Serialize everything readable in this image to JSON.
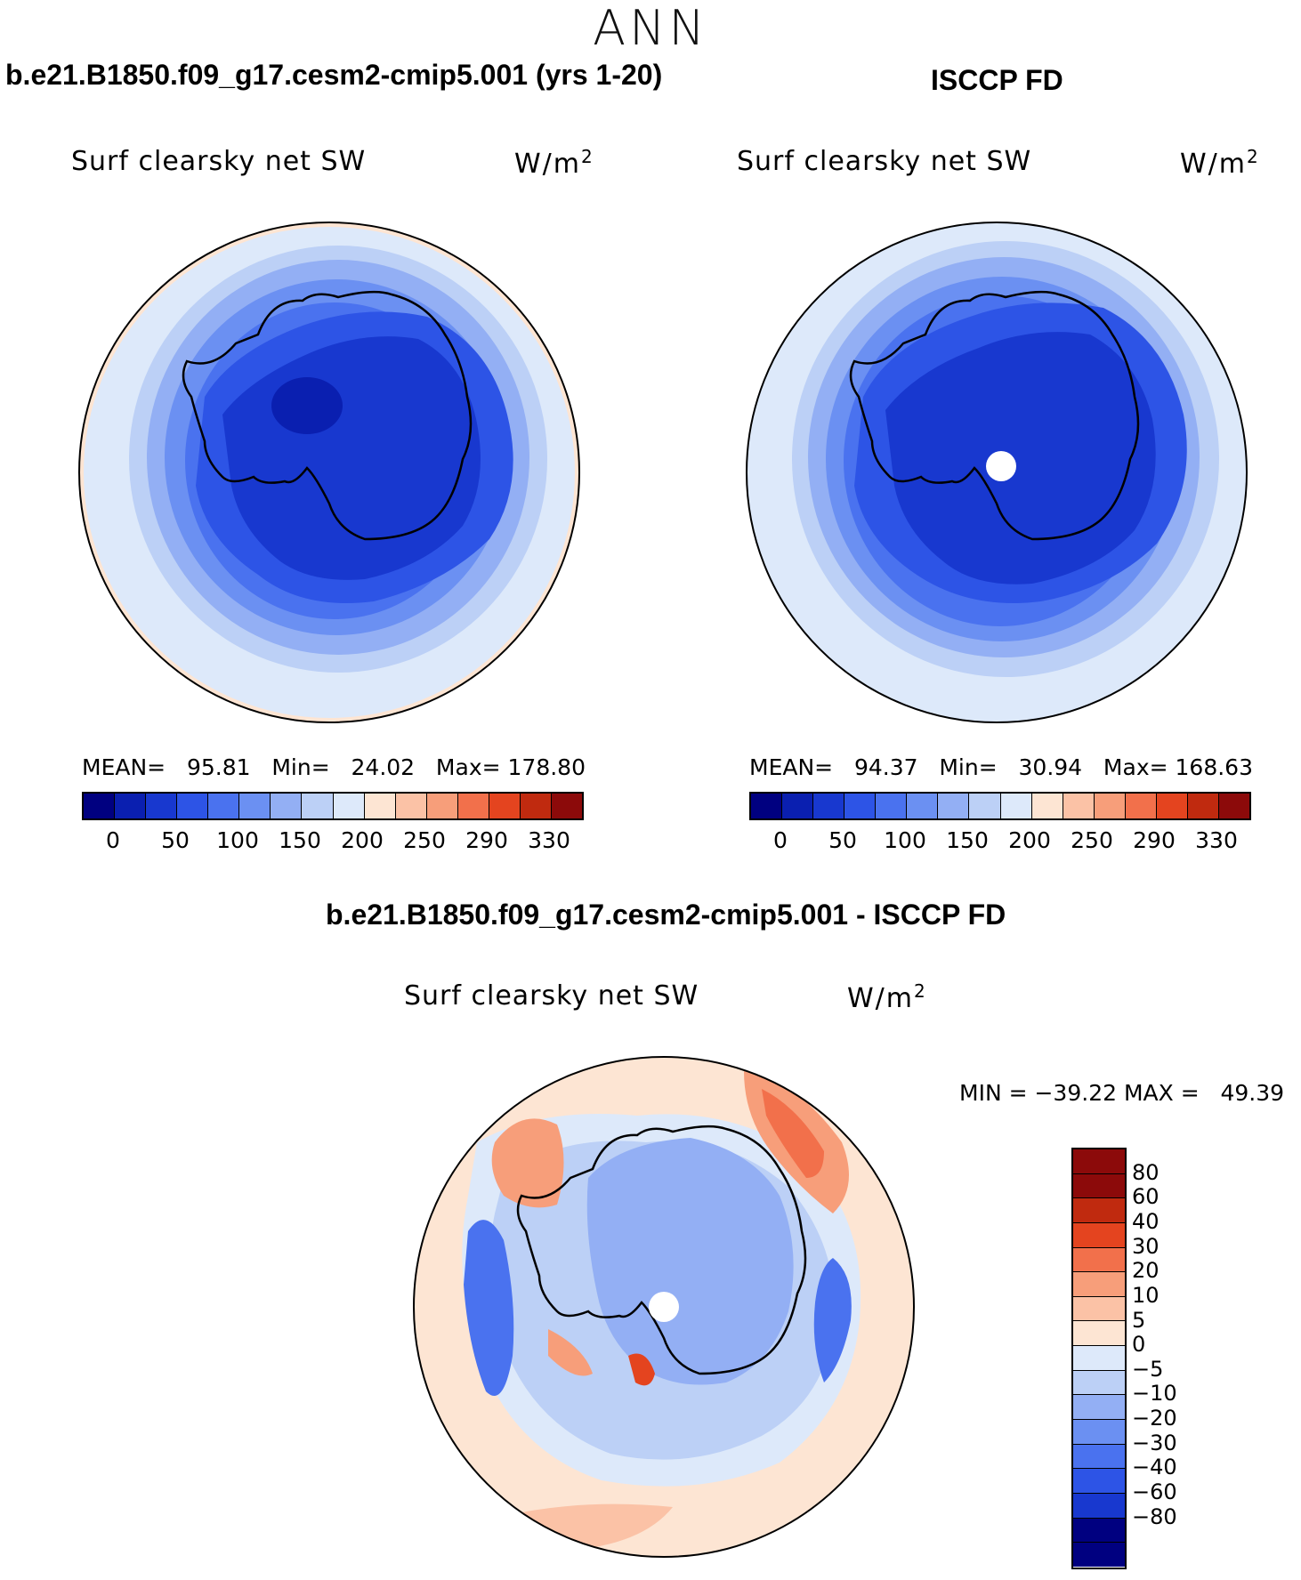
{
  "figure": {
    "title": "ANN",
    "variable": "Surf clearsky net SW",
    "units": "W/m",
    "units_sup": "2"
  },
  "panels": [
    {
      "id": "model",
      "title": "b.e21.B1850.f09_g17.cesm2-cmip5.001 (yrs 1-20)",
      "stats": "MEAN=   95.81   Min=   24.02   Max= 178.80"
    },
    {
      "id": "obs",
      "title": "ISCCP FD",
      "stats": "MEAN=   94.37   Min=   30.94   Max= 168.63"
    },
    {
      "id": "diff",
      "title": "b.e21.B1850.f09_g17.cesm2-cmip5.001 - ISCCP FD",
      "stats": "MIN = −39.22 MAX =   49.39"
    }
  ],
  "colorbar_abs": {
    "colors": [
      "#000080",
      "#0a1fb0",
      "#1838cf",
      "#2d54e6",
      "#4a72ef",
      "#6b90f2",
      "#93aff4",
      "#bcd0f6",
      "#dde9fa",
      "#fde5d3",
      "#fbc2a6",
      "#f79e7a",
      "#f2704b",
      "#e4441f",
      "#c02a0f",
      "#8c0a0a"
    ],
    "labels": [
      "0",
      "50",
      "100",
      "150",
      "200",
      "250",
      "290",
      "330"
    ]
  },
  "colorbar_diff": {
    "colors": [
      "#8c0a0a",
      "#c02a0f",
      "#e4441f",
      "#f2704b",
      "#f79e7a",
      "#fbc2a6",
      "#fde5d3",
      "#dde9fa",
      "#bcd0f6",
      "#93aff4",
      "#6b90f2",
      "#4a72ef",
      "#2d54e6",
      "#1838cf",
      "#000080"
    ],
    "labels": [
      "80",
      "60",
      "40",
      "30",
      "20",
      "10",
      "5",
      "0",
      "−5",
      "−10",
      "−20",
      "−30",
      "−40",
      "−60",
      "−80"
    ]
  },
  "chart_data": {
    "type": "heatmap",
    "projection": "south polar stereographic",
    "maps": [
      {
        "name": "model",
        "mean": 95.81,
        "min": 24.02,
        "max": 178.8,
        "contour_levels": [
          0,
          25,
          50,
          75,
          100,
          125,
          150,
          175,
          200,
          225,
          250,
          270,
          290,
          310,
          330
        ]
      },
      {
        "name": "obs",
        "mean": 94.37,
        "min": 30.94,
        "max": 168.63,
        "contour_levels": [
          0,
          25,
          50,
          75,
          100,
          125,
          150,
          175,
          200,
          225,
          250,
          270,
          290,
          310,
          330
        ]
      },
      {
        "name": "difference",
        "min": -39.22,
        "max": 49.39,
        "contour_levels": [
          -80,
          -60,
          -40,
          -30,
          -20,
          -10,
          -5,
          0,
          5,
          10,
          20,
          30,
          40,
          60,
          80
        ]
      }
    ]
  }
}
